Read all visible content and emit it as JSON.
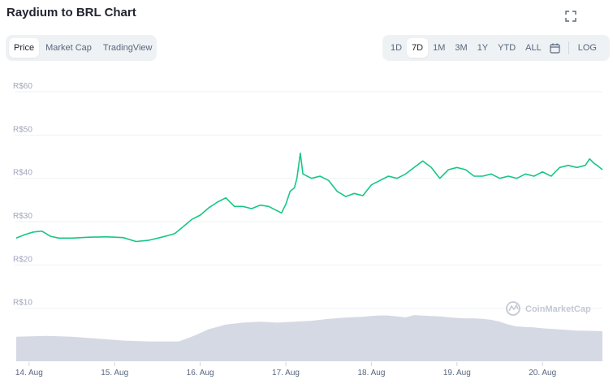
{
  "header": {
    "title": "Raydium to BRL Chart",
    "expand_icon": "expand-icon"
  },
  "tabs": [
    {
      "label": "Price",
      "active": true
    },
    {
      "label": "Market Cap",
      "active": false
    },
    {
      "label": "TradingView",
      "active": false
    }
  ],
  "ranges": [
    {
      "label": "1D",
      "active": false
    },
    {
      "label": "7D",
      "active": true
    },
    {
      "label": "1M",
      "active": false
    },
    {
      "label": "3M",
      "active": false
    },
    {
      "label": "1Y",
      "active": false
    },
    {
      "label": "YTD",
      "active": false
    },
    {
      "label": "ALL",
      "active": false
    }
  ],
  "calendar_icon": "calendar-icon",
  "log_label": "LOG",
  "watermark": "CoinMarketCap",
  "colors": {
    "line": "#16c784",
    "volume": "#d5d9e4",
    "grid": "#eff2f5"
  },
  "chart_data": {
    "type": "line",
    "title": "",
    "xlabel": "",
    "ylabel": "",
    "ylim": [
      0,
      60
    ],
    "ytick_labels": [
      "R$10",
      "R$20",
      "R$30",
      "R$40",
      "R$50",
      "R$60"
    ],
    "ytick_values": [
      10,
      20,
      30,
      40,
      50,
      60
    ],
    "xtick_labels": [
      "14. Aug",
      "15. Aug",
      "16. Aug",
      "17. Aug",
      "18. Aug",
      "19. Aug",
      "20. Aug"
    ],
    "xlim": [
      13.85,
      20.7
    ],
    "grid": true,
    "series": [
      {
        "kind": "price",
        "x": [
          13.85,
          13.95,
          14.05,
          14.15,
          14.25,
          14.35,
          14.5,
          14.7,
          14.9,
          15.1,
          15.25,
          15.4,
          15.55,
          15.7,
          15.8,
          15.9,
          16.0,
          16.1,
          16.2,
          16.3,
          16.4,
          16.5,
          16.6,
          16.7,
          16.8,
          16.9,
          16.95,
          17.0,
          17.05,
          17.1,
          17.13,
          17.17,
          17.2,
          17.3,
          17.4,
          17.5,
          17.6,
          17.7,
          17.8,
          17.9,
          18.0,
          18.1,
          18.2,
          18.3,
          18.4,
          18.5,
          18.6,
          18.7,
          18.8,
          18.9,
          19.0,
          19.1,
          19.2,
          19.3,
          19.4,
          19.5,
          19.6,
          19.7,
          19.8,
          19.9,
          20.0,
          20.1,
          20.2,
          20.3,
          20.4,
          20.5,
          20.55,
          20.6,
          20.65,
          20.7
        ],
        "values": [
          26.2,
          27.0,
          27.6,
          27.8,
          26.6,
          26.2,
          26.2,
          26.4,
          26.5,
          26.3,
          25.4,
          25.7,
          26.4,
          27.2,
          28.8,
          30.5,
          31.5,
          33.2,
          34.5,
          35.5,
          33.5,
          33.5,
          33.0,
          33.8,
          33.5,
          32.5,
          32.0,
          34.0,
          37.0,
          37.8,
          40.0,
          45.8,
          41.0,
          40.0,
          40.5,
          39.5,
          37.0,
          35.8,
          36.5,
          36.0,
          38.5,
          39.5,
          40.5,
          40.0,
          41.0,
          42.5,
          44.0,
          42.5,
          40.0,
          42.0,
          42.5,
          42.0,
          40.5,
          40.5,
          41.0,
          40.0,
          40.5,
          40.0,
          41.0,
          40.5,
          41.5,
          40.5,
          42.5,
          43.0,
          42.5,
          43.0,
          44.5,
          43.5,
          42.8,
          42.0
        ]
      },
      {
        "kind": "volume",
        "x": [
          13.85,
          14.2,
          14.5,
          14.8,
          15.1,
          15.4,
          15.6,
          15.75,
          15.9,
          16.0,
          16.1,
          16.3,
          16.5,
          16.7,
          16.9,
          17.1,
          17.3,
          17.5,
          17.7,
          17.9,
          18.0,
          18.1,
          18.2,
          18.3,
          18.4,
          18.5,
          18.6,
          18.7,
          18.8,
          18.9,
          19.0,
          19.1,
          19.2,
          19.3,
          19.4,
          19.5,
          19.6,
          19.7,
          19.8,
          19.9,
          20.0,
          20.1,
          20.2,
          20.3,
          20.4,
          20.5,
          20.6,
          20.7
        ],
        "values": [
          13,
          13.5,
          13,
          12,
          11,
          10.5,
          10.5,
          10.5,
          13,
          15,
          17,
          19.5,
          20.5,
          21,
          20.5,
          21,
          21.5,
          22.5,
          23.2,
          23.6,
          24,
          24.3,
          24.3,
          23.8,
          23.3,
          24.5,
          24.2,
          24,
          23.8,
          23.4,
          23,
          22.8,
          22.8,
          22.5,
          22,
          21,
          19.5,
          18.5,
          18.2,
          18.0,
          17.5,
          17.2,
          16.9,
          16.6,
          16.3,
          16.2,
          16.1,
          16.0
        ]
      }
    ]
  }
}
